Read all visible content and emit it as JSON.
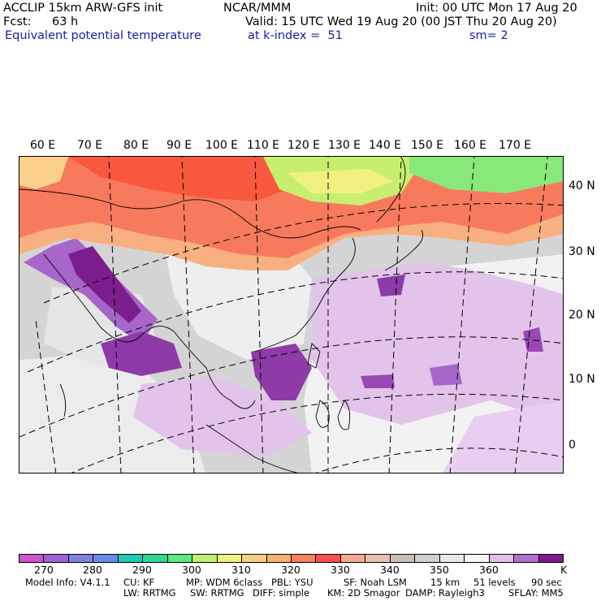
{
  "header": {
    "model_line": "ACCLIP 15km ARW-GFS init",
    "org": "NCAR/MMM",
    "init": "Init: 00 UTC Mon 17 Aug 20",
    "fcst_label": "Fcst:",
    "fcst_value": "63 h",
    "valid": "Valid: 15 UTC Wed 19 Aug 20 (00 JST Thu 20 Aug 20)",
    "field": "Equivalent potential temperature",
    "level": "at k-index =  51",
    "smooth": "sm= 2"
  },
  "map": {
    "lon_labels": [
      "60 E",
      "70 E",
      "80 E",
      "90 E",
      "100 E",
      "110 E",
      "120 E",
      "130 E",
      "140 E",
      "150 E",
      "160 E",
      "170 E"
    ],
    "lat_labels": [
      "40 N",
      "30 N",
      "20 N",
      "10 N",
      "0"
    ]
  },
  "colorbar": {
    "colors": [
      "#cc55cc",
      "#a060d8",
      "#8080e0",
      "#6a8ae8",
      "#20c8b8",
      "#30d890",
      "#60e880",
      "#c0f070",
      "#f0f080",
      "#f8d080",
      "#f8b070",
      "#f88060",
      "#f85050",
      "#f8a890",
      "#e8c0b0",
      "#c8c0b8",
      "#d0d0d0",
      "#e8e8e8",
      "#f8f8f8",
      "#e0c0e8",
      "#b070c8",
      "#801890"
    ],
    "labels": [
      "270",
      "280",
      "290",
      "300",
      "310",
      "320",
      "330",
      "340",
      "350",
      "360"
    ],
    "unit": "K"
  },
  "footer": {
    "line1": [
      "Model Info: V4.1.1",
      "CU: KF",
      "MP: WDM 6class",
      "PBL: YSU",
      "SF: Noah LSM",
      "15 km",
      "51 levels",
      "90 sec"
    ],
    "line2": [
      "LW: RRTMG",
      "SW: RRTMG",
      "DIFF: simple",
      "KM: 2D Smagor",
      "DAMP: Rayleigh3",
      "SFLAY: MM5"
    ]
  }
}
